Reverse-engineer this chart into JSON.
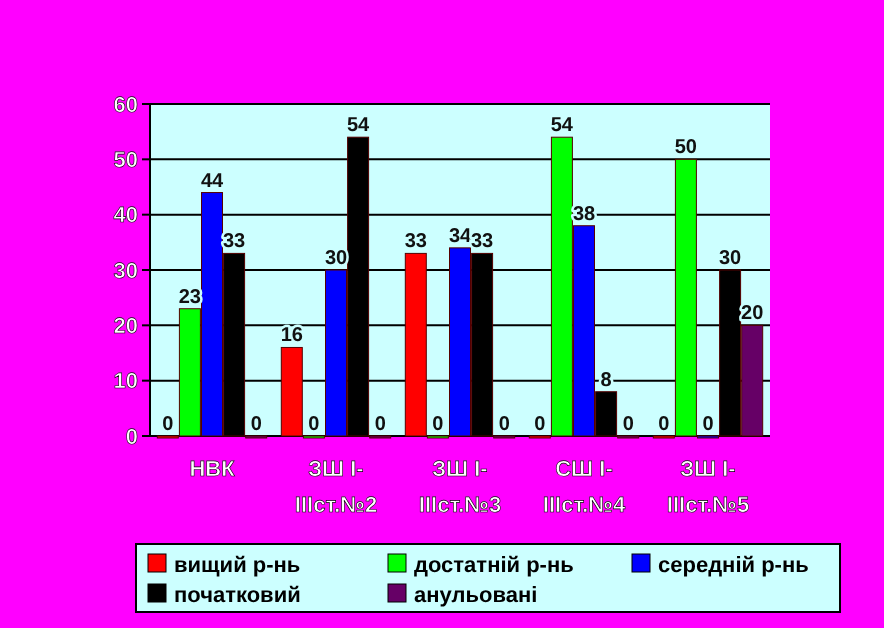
{
  "chart_data": {
    "type": "bar",
    "categories": [
      "НВК",
      "ЗШ І-ІІІст.№2",
      "ЗШ І-ІІІст.№3",
      "СШ І-ІІІст.№4",
      "ЗШ І-ІІІст.№5"
    ],
    "series": [
      {
        "name": "вищий р-нь",
        "color": "#ff0000",
        "values": [
          0,
          16,
          33,
          0,
          0
        ]
      },
      {
        "name": "достатній р-нь",
        "color": "#00ff00",
        "values": [
          23,
          0,
          0,
          54,
          50
        ]
      },
      {
        "name": "середній р-нь",
        "color": "#0000ff",
        "values": [
          44,
          30,
          34,
          38,
          0
        ]
      },
      {
        "name": "початковий",
        "color": "#000000",
        "values": [
          33,
          54,
          33,
          8,
          30
        ]
      },
      {
        "name": "анульовані",
        "color": "#660066",
        "values": [
          0,
          0,
          0,
          0,
          20
        ]
      }
    ],
    "ylim": [
      0,
      60
    ],
    "yticks": [
      0,
      10,
      20,
      30,
      40,
      50,
      60
    ],
    "grid": "y",
    "data_labels": true,
    "legend": "bottom"
  }
}
